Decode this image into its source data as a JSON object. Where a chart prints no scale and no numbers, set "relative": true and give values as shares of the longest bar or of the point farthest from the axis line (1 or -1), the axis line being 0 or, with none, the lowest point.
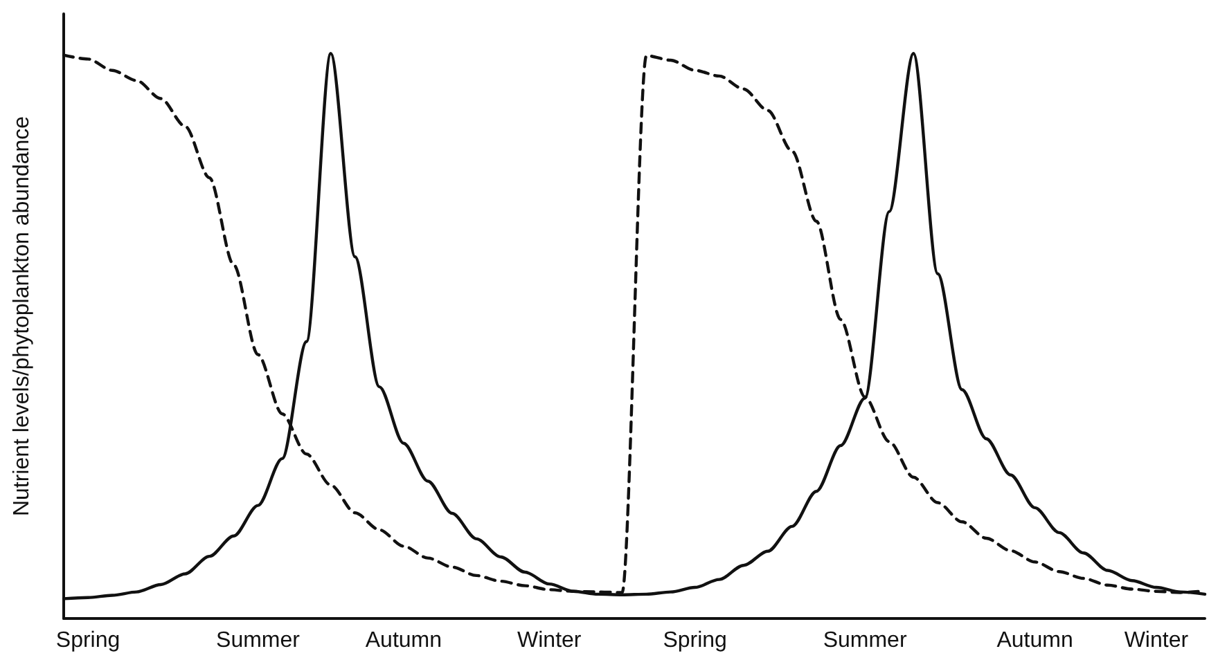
{
  "chart_data": {
    "type": "line",
    "relative": true,
    "ylabel": "Nutrient levels/phytoplankton abundance",
    "grid": false,
    "marker": "none",
    "categories": [
      null,
      "Spring",
      null,
      null,
      null,
      null,
      null,
      null,
      "Summer",
      null,
      null,
      null,
      null,
      null,
      "Autumn",
      null,
      null,
      null,
      null,
      null,
      "Winter",
      null,
      null,
      null,
      null,
      null,
      "Spring",
      null,
      null,
      null,
      null,
      null,
      null,
      "Summer",
      null,
      null,
      null,
      null,
      null,
      null,
      "Autumn",
      null,
      null,
      null,
      null,
      "Winter",
      null,
      null
    ],
    "series": [
      {
        "color": "#111111",
        "line_style": "solid",
        "values": [
          0.035,
          0.037,
          0.041,
          0.047,
          0.06,
          0.079,
          0.11,
          0.146,
          0.2,
          0.283,
          0.49,
          1,
          0.64,
          0.41,
          0.31,
          0.243,
          0.186,
          0.141,
          0.109,
          0.082,
          0.061,
          0.048,
          0.043,
          0.042,
          0.043,
          0.047,
          0.055,
          0.069,
          0.094,
          0.119,
          0.163,
          0.225,
          0.306,
          0.39,
          0.72,
          1,
          0.61,
          0.405,
          0.318,
          0.254,
          0.196,
          0.152,
          0.116,
          0.085,
          0.067,
          0.055,
          0.047,
          0.043
        ]
      },
      {
        "color": "#111111",
        "line_style": "dashed",
        "values": [
          0.997,
          0.99,
          0.97,
          0.952,
          0.92,
          0.871,
          0.78,
          0.626,
          0.467,
          0.362,
          0.291,
          0.236,
          0.187,
          0.157,
          0.128,
          0.107,
          0.091,
          0.076,
          0.066,
          0.058,
          0.051,
          0.048,
          0.047,
          0.046,
          0.996,
          0.988,
          0.97,
          0.96,
          0.937,
          0.899,
          0.827,
          0.703,
          0.529,
          0.392,
          0.313,
          0.25,
          0.205,
          0.171,
          0.142,
          0.12,
          0.1,
          0.083,
          0.071,
          0.059,
          0.052,
          0.048,
          0.046,
          0.049
        ]
      }
    ]
  }
}
